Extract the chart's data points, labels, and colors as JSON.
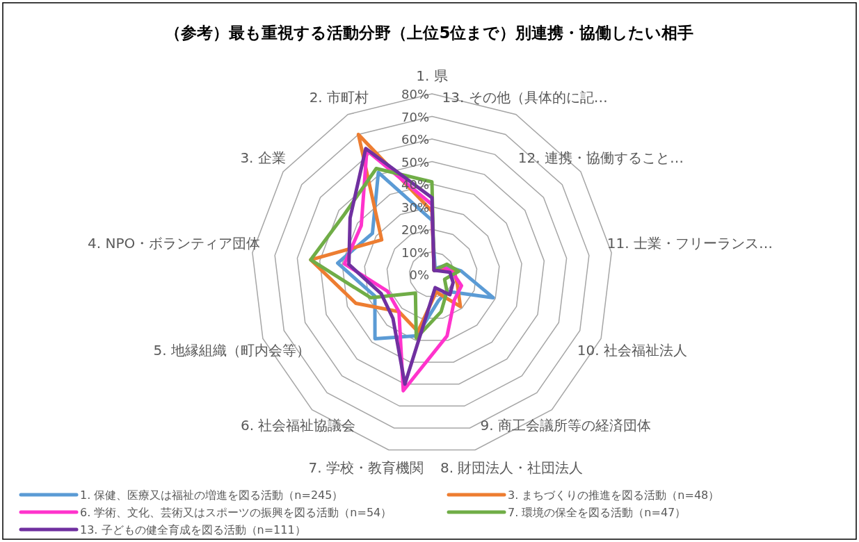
{
  "chart_data": {
    "type": "radar",
    "title": "（参考）最も重視する活動分野（上位5位まで）別連携・協働したい相手",
    "categories": [
      "1. 県",
      "13. その他（具体的に記…",
      "12. 連携・協働すること…",
      "11. 士業・フリーランス…",
      "10. 社会福祉法人",
      "9. 商工会議所等の経済団体",
      "8. 財団法人・社団法人",
      "7. 学校・教育機関",
      "6. 社会福祉協議会",
      "5. 地縁組織（町内会等）",
      "4. NPO・ボランティア団体",
      "3. 企業",
      "2. 市町村"
    ],
    "series": [
      {
        "name": "1. 保健、医療又は福祉の増進を図る活動（n=245）",
        "color": "#5b9bd5",
        "values": [
          24,
          3,
          7,
          13,
          29,
          10,
          12,
          28,
          38,
          27,
          42,
          32,
          51
        ]
      },
      {
        "name": "3. まちづくりの推進を図る活動（n=48）",
        "color": "#ed7d31",
        "values": [
          28,
          2,
          5,
          10,
          12,
          19,
          8,
          26,
          22,
          36,
          54,
          27,
          70
        ]
      },
      {
        "name": "6. 学術、文化、芸術又はスポーツの振興を図る活動（n=54）",
        "color": "#ff33cc",
        "values": [
          31,
          2,
          6,
          9,
          14,
          15,
          28,
          53,
          22,
          21,
          39,
          38,
          62
        ]
      },
      {
        "name": "7. 環境の保全を図る活動（n=47）",
        "color": "#70ad47",
        "values": [
          41,
          2,
          8,
          12,
          6,
          10,
          17,
          29,
          11,
          29,
          54,
          47,
          53
        ]
      },
      {
        "name": "13. 子どもの健全育成を図る活動（n=111）",
        "color": "#7030a0",
        "values": [
          34,
          2,
          3,
          8,
          10,
          12,
          6,
          50,
          26,
          24,
          37,
          44,
          63
        ]
      }
    ],
    "ylim": [
      0,
      80
    ],
    "yticks": [
      {
        "value": 0,
        "label": "0%"
      },
      {
        "value": 10,
        "label": "10%"
      },
      {
        "value": 20,
        "label": "20%"
      },
      {
        "value": 30,
        "label": "30%"
      },
      {
        "value": 40,
        "label": "40%"
      },
      {
        "value": 50,
        "label": "50%"
      },
      {
        "value": 60,
        "label": "60%"
      },
      {
        "value": 70,
        "label": "70%"
      },
      {
        "value": 80,
        "label": "80%"
      }
    ],
    "grid": true,
    "legend": "bottom"
  }
}
